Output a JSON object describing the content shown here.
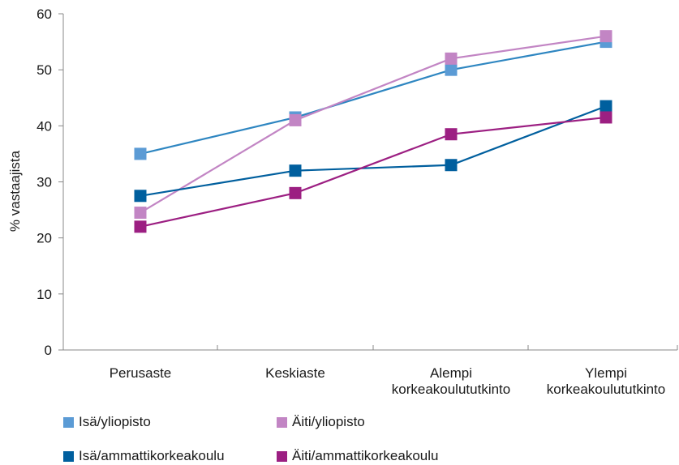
{
  "chart_data": {
    "type": "line",
    "ylabel": "% vastaajista",
    "xlabel": "",
    "ylim": [
      0,
      60
    ],
    "yticks": [
      "0",
      "10",
      "20",
      "30",
      "40",
      "50",
      "60"
    ],
    "categories": [
      [
        "Perusaste"
      ],
      [
        "Keskiaste"
      ],
      [
        "Alempi",
        "korkeakoulututkinto"
      ],
      [
        "Ylempi",
        "korkeakoulututkinto"
      ]
    ],
    "series": [
      {
        "name": "Isä/yliopisto",
        "color": "#5b9bd5",
        "line_color": "#2e86c1",
        "values": [
          35,
          41.5,
          50,
          55
        ]
      },
      {
        "name": "Äiti/yliopisto",
        "color": "#c285c4",
        "line_color": "#c285c4",
        "values": [
          24.5,
          41,
          52,
          56
        ]
      },
      {
        "name": "Isä/ammattikorkeakoulu",
        "color": "#005f9e",
        "line_color": "#005f9e",
        "values": [
          27.5,
          32,
          33,
          43.5
        ]
      },
      {
        "name": "Äiti/ammattikorkeakoulu",
        "color": "#9c1f82",
        "line_color": "#9c1f82",
        "values": [
          22,
          28,
          38.5,
          41.5
        ]
      }
    ],
    "legend": "bottom",
    "grid": false
  }
}
